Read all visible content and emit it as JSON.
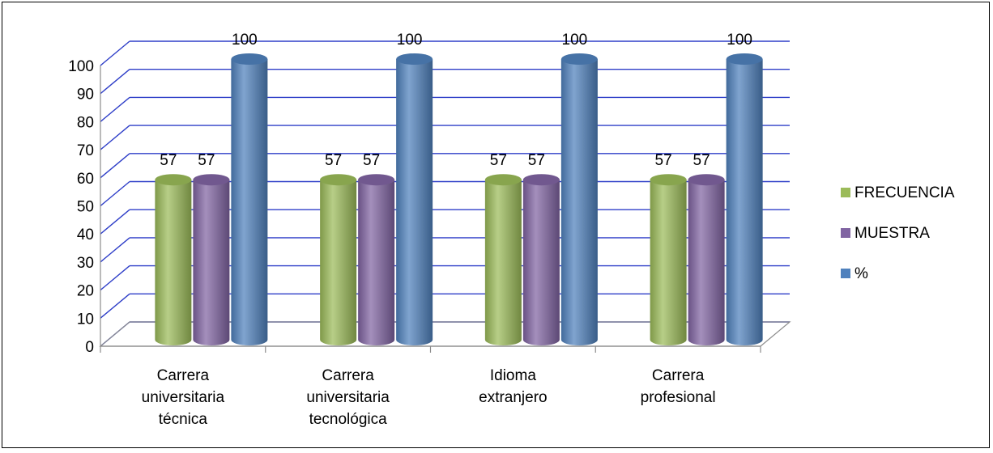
{
  "chart_data": {
    "type": "bar",
    "categories": [
      [
        "Carrera",
        "universitaria",
        "técnica"
      ],
      [
        "Carrera",
        "universitaria",
        "tecnológica"
      ],
      [
        "Idioma",
        "extranjero"
      ],
      [
        "Carrera",
        "profesional"
      ]
    ],
    "series": [
      {
        "name": "FRECUENCIA",
        "color": "#9BBB59",
        "values": [
          57,
          57,
          57,
          57
        ]
      },
      {
        "name": "MUESTRA",
        "color": "#8064A2",
        "values": [
          57,
          57,
          57,
          57
        ]
      },
      {
        "name": "%",
        "color": "#4F81BD",
        "values": [
          100,
          100,
          100,
          100
        ]
      }
    ],
    "ylim": [
      0,
      100
    ],
    "yticks": [
      0,
      10,
      20,
      30,
      40,
      50,
      60,
      70,
      80,
      90,
      100
    ],
    "gridlines": true,
    "gridline_color": "#2E3EC8",
    "style": "3d-cylinder",
    "legend_position": "right"
  }
}
